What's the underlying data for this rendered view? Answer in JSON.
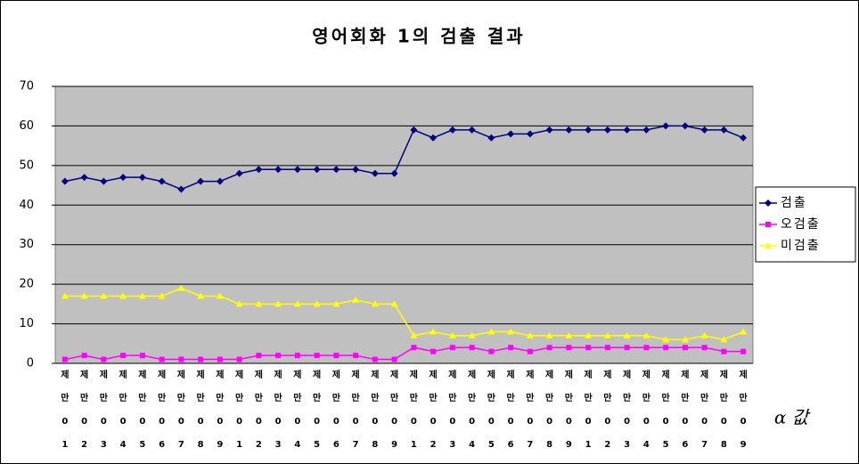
{
  "chart_data": {
    "type": "line",
    "title": "영어회화 1의 검출 결과",
    "x_label": "α 값",
    "categories": [
      "제만01",
      "제만02",
      "제만03",
      "제만04",
      "제만05",
      "제만06",
      "제만07",
      "제만08",
      "제만09",
      "제만01",
      "제만02",
      "제만03",
      "제만04",
      "제만05",
      "제만06",
      "제만07",
      "제만08",
      "제만09",
      "제만01",
      "제만02",
      "제만03",
      "제만04",
      "제만05",
      "제만06",
      "제만07",
      "제만08",
      "제만09",
      "제만01",
      "제만02",
      "제만03",
      "제만04",
      "제만05",
      "제만06",
      "제만07",
      "제만08",
      "제만09"
    ],
    "series": [
      {
        "name": "검출",
        "color": "#000080",
        "marker": "diamond",
        "values": [
          46,
          47,
          46,
          47,
          47,
          46,
          44,
          46,
          46,
          48,
          49,
          49,
          49,
          49,
          49,
          49,
          48,
          48,
          59,
          57,
          59,
          59,
          57,
          58,
          58,
          59,
          59,
          59,
          59,
          59,
          59,
          60,
          60,
          59,
          59,
          57
        ]
      },
      {
        "name": "오검출",
        "color": "#ff00ff",
        "marker": "square",
        "values": [
          1,
          2,
          1,
          2,
          2,
          1,
          1,
          1,
          1,
          1,
          2,
          2,
          2,
          2,
          2,
          2,
          1,
          1,
          4,
          3,
          4,
          4,
          3,
          4,
          3,
          4,
          4,
          4,
          4,
          4,
          4,
          4,
          4,
          4,
          3,
          3
        ]
      },
      {
        "name": "미검출",
        "color": "#ffff00",
        "marker": "triangle",
        "values": [
          17,
          17,
          17,
          17,
          17,
          17,
          19,
          17,
          17,
          15,
          15,
          15,
          15,
          15,
          15,
          16,
          15,
          15,
          7,
          8,
          7,
          7,
          8,
          8,
          7,
          7,
          7,
          7,
          7,
          7,
          7,
          6,
          6,
          7,
          6,
          8
        ]
      }
    ],
    "ylim": [
      0,
      70
    ],
    "yticks": [
      0,
      10,
      20,
      30,
      40,
      50,
      60,
      70
    ],
    "grid": true,
    "legend": "right"
  }
}
